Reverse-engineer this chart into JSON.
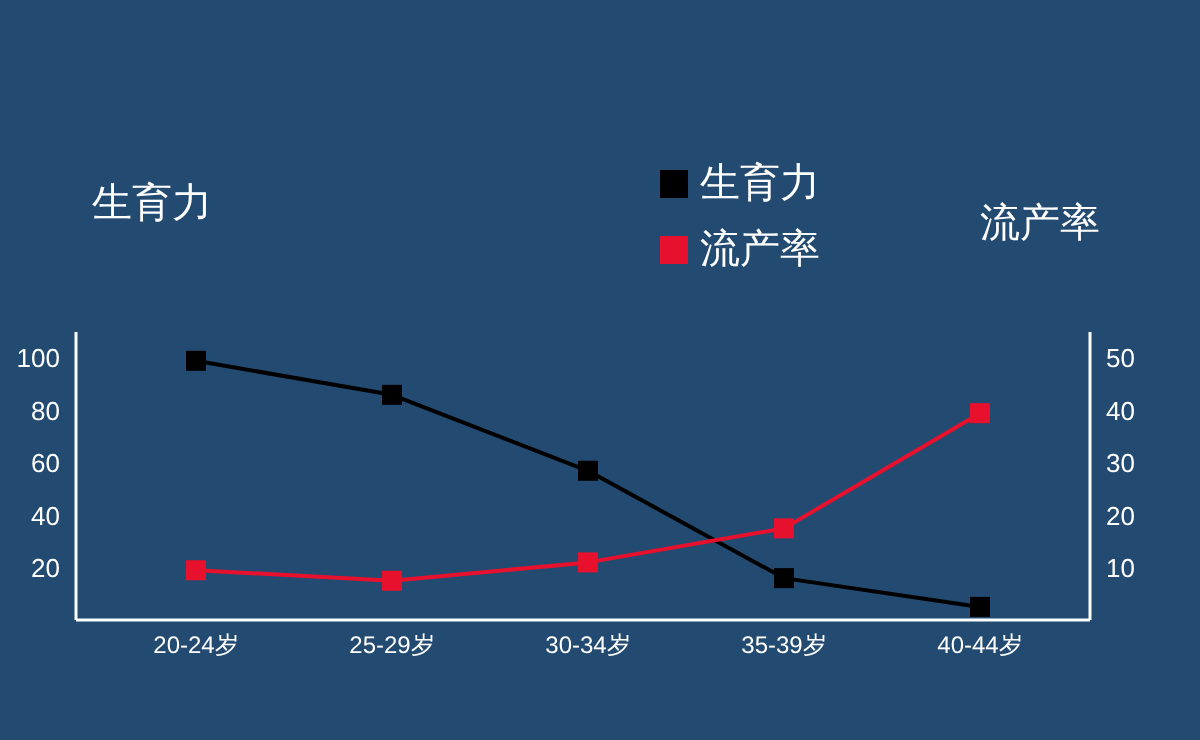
{
  "chart_data": {
    "type": "line",
    "categories": [
      "20-24岁",
      "25-29岁",
      "30-34岁",
      "35-39岁",
      "40-44岁"
    ],
    "series": [
      {
        "name": "生育力",
        "color": "#000000",
        "values": [
          99,
          86,
          57,
          16,
          5
        ]
      },
      {
        "name": "流产率",
        "color": "#e8112d",
        "values": [
          9.5,
          7.5,
          11,
          17.5,
          39.5
        ],
        "axis": "y2"
      }
    ],
    "ylabel": "生育力",
    "y2label": "流产率",
    "ylim": [
      0,
      110
    ],
    "yticks": [
      20,
      40,
      60,
      80,
      100
    ],
    "y2lim": [
      0,
      55
    ],
    "y2ticks": [
      10,
      20,
      30,
      40,
      50
    ],
    "marker": "square",
    "line_style": "solid",
    "legend": "top",
    "grid": false
  }
}
